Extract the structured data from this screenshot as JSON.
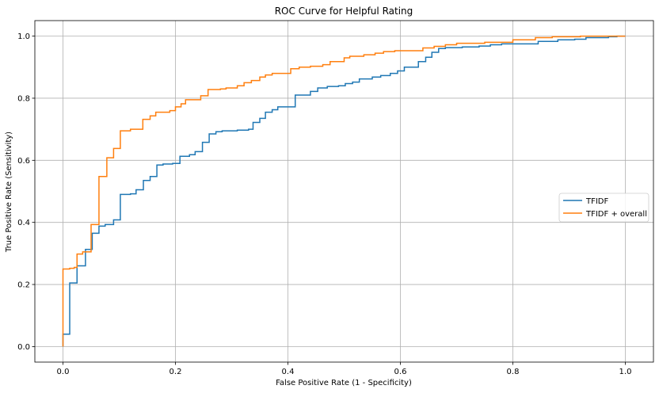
{
  "chart_data": {
    "type": "line",
    "title": "ROC Curve for Helpful Rating",
    "xlabel": "False Positive Rate (1 - Specificity)",
    "ylabel": "True Positive Rate (Sensitivity)",
    "xlim": [
      -0.05,
      1.05
    ],
    "ylim": [
      -0.05,
      1.05
    ],
    "xticks": [
      0.0,
      0.2,
      0.4,
      0.6,
      0.8,
      1.0
    ],
    "xtick_labels": [
      "0.0",
      "0.2",
      "0.4",
      "0.6",
      "0.8",
      "1.0"
    ],
    "yticks": [
      0.0,
      0.2,
      0.4,
      0.6,
      0.8,
      1.0
    ],
    "ytick_labels": [
      "0.0",
      "0.2",
      "0.4",
      "0.6",
      "0.8",
      "1.0"
    ],
    "grid": true,
    "legend_position": "center-right",
    "series": [
      {
        "name": "TFIDF",
        "color": "#1f77b4",
        "points": [
          [
            0.0,
            0.0
          ],
          [
            0.0,
            0.04
          ],
          [
            0.012,
            0.04
          ],
          [
            0.012,
            0.205
          ],
          [
            0.025,
            0.205
          ],
          [
            0.025,
            0.26
          ],
          [
            0.04,
            0.26
          ],
          [
            0.04,
            0.313
          ],
          [
            0.052,
            0.313
          ],
          [
            0.052,
            0.365
          ],
          [
            0.064,
            0.365
          ],
          [
            0.064,
            0.388
          ],
          [
            0.075,
            0.388
          ],
          [
            0.075,
            0.393
          ],
          [
            0.09,
            0.393
          ],
          [
            0.09,
            0.408
          ],
          [
            0.102,
            0.408
          ],
          [
            0.102,
            0.49
          ],
          [
            0.12,
            0.49
          ],
          [
            0.12,
            0.492
          ],
          [
            0.13,
            0.492
          ],
          [
            0.13,
            0.505
          ],
          [
            0.143,
            0.505
          ],
          [
            0.143,
            0.535
          ],
          [
            0.155,
            0.535
          ],
          [
            0.155,
            0.548
          ],
          [
            0.167,
            0.548
          ],
          [
            0.167,
            0.585
          ],
          [
            0.178,
            0.585
          ],
          [
            0.178,
            0.588
          ],
          [
            0.195,
            0.588
          ],
          [
            0.195,
            0.59
          ],
          [
            0.208,
            0.59
          ],
          [
            0.208,
            0.613
          ],
          [
            0.225,
            0.613
          ],
          [
            0.225,
            0.618
          ],
          [
            0.235,
            0.618
          ],
          [
            0.235,
            0.628
          ],
          [
            0.248,
            0.628
          ],
          [
            0.248,
            0.658
          ],
          [
            0.26,
            0.658
          ],
          [
            0.26,
            0.685
          ],
          [
            0.272,
            0.685
          ],
          [
            0.272,
            0.692
          ],
          [
            0.283,
            0.692
          ],
          [
            0.283,
            0.695
          ],
          [
            0.31,
            0.695
          ],
          [
            0.31,
            0.697
          ],
          [
            0.33,
            0.697
          ],
          [
            0.33,
            0.7
          ],
          [
            0.338,
            0.7
          ],
          [
            0.338,
            0.722
          ],
          [
            0.35,
            0.722
          ],
          [
            0.35,
            0.735
          ],
          [
            0.36,
            0.735
          ],
          [
            0.36,
            0.755
          ],
          [
            0.372,
            0.755
          ],
          [
            0.372,
            0.763
          ],
          [
            0.382,
            0.763
          ],
          [
            0.382,
            0.772
          ],
          [
            0.413,
            0.772
          ],
          [
            0.413,
            0.81
          ],
          [
            0.44,
            0.81
          ],
          [
            0.44,
            0.822
          ],
          [
            0.453,
            0.822
          ],
          [
            0.453,
            0.833
          ],
          [
            0.47,
            0.833
          ],
          [
            0.47,
            0.838
          ],
          [
            0.49,
            0.838
          ],
          [
            0.49,
            0.84
          ],
          [
            0.502,
            0.84
          ],
          [
            0.502,
            0.847
          ],
          [
            0.515,
            0.847
          ],
          [
            0.515,
            0.852
          ],
          [
            0.527,
            0.852
          ],
          [
            0.527,
            0.862
          ],
          [
            0.55,
            0.862
          ],
          [
            0.55,
            0.868
          ],
          [
            0.565,
            0.868
          ],
          [
            0.565,
            0.873
          ],
          [
            0.582,
            0.873
          ],
          [
            0.582,
            0.88
          ],
          [
            0.595,
            0.88
          ],
          [
            0.595,
            0.888
          ],
          [
            0.607,
            0.888
          ],
          [
            0.607,
            0.9
          ],
          [
            0.632,
            0.9
          ],
          [
            0.632,
            0.918
          ],
          [
            0.645,
            0.918
          ],
          [
            0.645,
            0.932
          ],
          [
            0.656,
            0.932
          ],
          [
            0.656,
            0.948
          ],
          [
            0.668,
            0.948
          ],
          [
            0.668,
            0.96
          ],
          [
            0.68,
            0.96
          ],
          [
            0.68,
            0.963
          ],
          [
            0.71,
            0.963
          ],
          [
            0.71,
            0.965
          ],
          [
            0.74,
            0.965
          ],
          [
            0.74,
            0.968
          ],
          [
            0.76,
            0.968
          ],
          [
            0.76,
            0.972
          ],
          [
            0.78,
            0.972
          ],
          [
            0.78,
            0.975
          ],
          [
            0.845,
            0.975
          ],
          [
            0.845,
            0.983
          ],
          [
            0.88,
            0.983
          ],
          [
            0.88,
            0.988
          ],
          [
            0.91,
            0.988
          ],
          [
            0.91,
            0.99
          ],
          [
            0.93,
            0.99
          ],
          [
            0.93,
            0.995
          ],
          [
            0.97,
            0.995
          ],
          [
            0.97,
            0.998
          ],
          [
            0.985,
            0.998
          ],
          [
            0.985,
            1.0
          ],
          [
            1.0,
            1.0
          ]
        ]
      },
      {
        "name": "TFIDF + overall",
        "color": "#ff7f0e",
        "points": [
          [
            0.0,
            0.0
          ],
          [
            0.0,
            0.25
          ],
          [
            0.012,
            0.25
          ],
          [
            0.012,
            0.252
          ],
          [
            0.02,
            0.252
          ],
          [
            0.02,
            0.255
          ],
          [
            0.025,
            0.255
          ],
          [
            0.025,
            0.298
          ],
          [
            0.035,
            0.298
          ],
          [
            0.035,
            0.305
          ],
          [
            0.05,
            0.305
          ],
          [
            0.05,
            0.393
          ],
          [
            0.064,
            0.393
          ],
          [
            0.064,
            0.548
          ],
          [
            0.078,
            0.548
          ],
          [
            0.078,
            0.608
          ],
          [
            0.09,
            0.608
          ],
          [
            0.09,
            0.638
          ],
          [
            0.102,
            0.638
          ],
          [
            0.102,
            0.695
          ],
          [
            0.12,
            0.695
          ],
          [
            0.12,
            0.7
          ],
          [
            0.142,
            0.7
          ],
          [
            0.142,
            0.732
          ],
          [
            0.155,
            0.732
          ],
          [
            0.155,
            0.743
          ],
          [
            0.165,
            0.743
          ],
          [
            0.165,
            0.755
          ],
          [
            0.19,
            0.755
          ],
          [
            0.19,
            0.76
          ],
          [
            0.2,
            0.76
          ],
          [
            0.2,
            0.772
          ],
          [
            0.21,
            0.772
          ],
          [
            0.21,
            0.782
          ],
          [
            0.218,
            0.782
          ],
          [
            0.218,
            0.795
          ],
          [
            0.245,
            0.795
          ],
          [
            0.245,
            0.808
          ],
          [
            0.258,
            0.808
          ],
          [
            0.258,
            0.828
          ],
          [
            0.28,
            0.828
          ],
          [
            0.28,
            0.83
          ],
          [
            0.29,
            0.83
          ],
          [
            0.29,
            0.833
          ],
          [
            0.31,
            0.833
          ],
          [
            0.31,
            0.84
          ],
          [
            0.322,
            0.84
          ],
          [
            0.322,
            0.85
          ],
          [
            0.335,
            0.85
          ],
          [
            0.335,
            0.857
          ],
          [
            0.35,
            0.857
          ],
          [
            0.35,
            0.868
          ],
          [
            0.36,
            0.868
          ],
          [
            0.36,
            0.875
          ],
          [
            0.372,
            0.875
          ],
          [
            0.372,
            0.88
          ],
          [
            0.405,
            0.88
          ],
          [
            0.405,
            0.895
          ],
          [
            0.42,
            0.895
          ],
          [
            0.42,
            0.9
          ],
          [
            0.44,
            0.9
          ],
          [
            0.44,
            0.903
          ],
          [
            0.462,
            0.903
          ],
          [
            0.462,
            0.908
          ],
          [
            0.475,
            0.908
          ],
          [
            0.475,
            0.918
          ],
          [
            0.5,
            0.918
          ],
          [
            0.5,
            0.93
          ],
          [
            0.51,
            0.93
          ],
          [
            0.51,
            0.935
          ],
          [
            0.535,
            0.935
          ],
          [
            0.535,
            0.94
          ],
          [
            0.555,
            0.94
          ],
          [
            0.555,
            0.945
          ],
          [
            0.57,
            0.945
          ],
          [
            0.57,
            0.95
          ],
          [
            0.59,
            0.95
          ],
          [
            0.59,
            0.953
          ],
          [
            0.64,
            0.953
          ],
          [
            0.64,
            0.962
          ],
          [
            0.66,
            0.962
          ],
          [
            0.66,
            0.967
          ],
          [
            0.68,
            0.967
          ],
          [
            0.68,
            0.972
          ],
          [
            0.7,
            0.972
          ],
          [
            0.7,
            0.977
          ],
          [
            0.75,
            0.977
          ],
          [
            0.75,
            0.98
          ],
          [
            0.8,
            0.98
          ],
          [
            0.8,
            0.988
          ],
          [
            0.84,
            0.988
          ],
          [
            0.84,
            0.995
          ],
          [
            0.87,
            0.995
          ],
          [
            0.87,
            0.998
          ],
          [
            0.92,
            0.998
          ],
          [
            0.92,
            1.0
          ],
          [
            1.0,
            1.0
          ]
        ]
      }
    ]
  }
}
